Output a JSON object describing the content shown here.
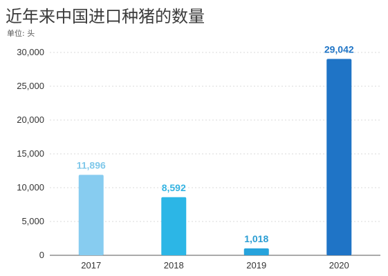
{
  "chart_data": {
    "type": "bar",
    "title": "近年来中国进口种猪的数量",
    "unit_label": "单位: 头",
    "categories": [
      "2017",
      "2018",
      "2019",
      "2020"
    ],
    "values": [
      11896,
      8592,
      1018,
      29042
    ],
    "value_labels": [
      "11,896",
      "8,592",
      "1,018",
      "29,042"
    ],
    "colors": [
      "#87ccf0",
      "#2cb6e6",
      "#26a3dc",
      "#1f74c6"
    ],
    "label_colors": [
      "#7fc8ea",
      "#33b3e2",
      "#2a9dd3",
      "#1f74c6"
    ],
    "ylim": [
      0,
      30000
    ],
    "yticks": [
      0,
      5000,
      10000,
      15000,
      20000,
      25000,
      30000
    ],
    "ytick_labels": [
      "0",
      "5,000",
      "10,000",
      "15,000",
      "20,000",
      "25,000",
      "30,000"
    ],
    "grid": true,
    "xlabel": "",
    "ylabel": ""
  }
}
